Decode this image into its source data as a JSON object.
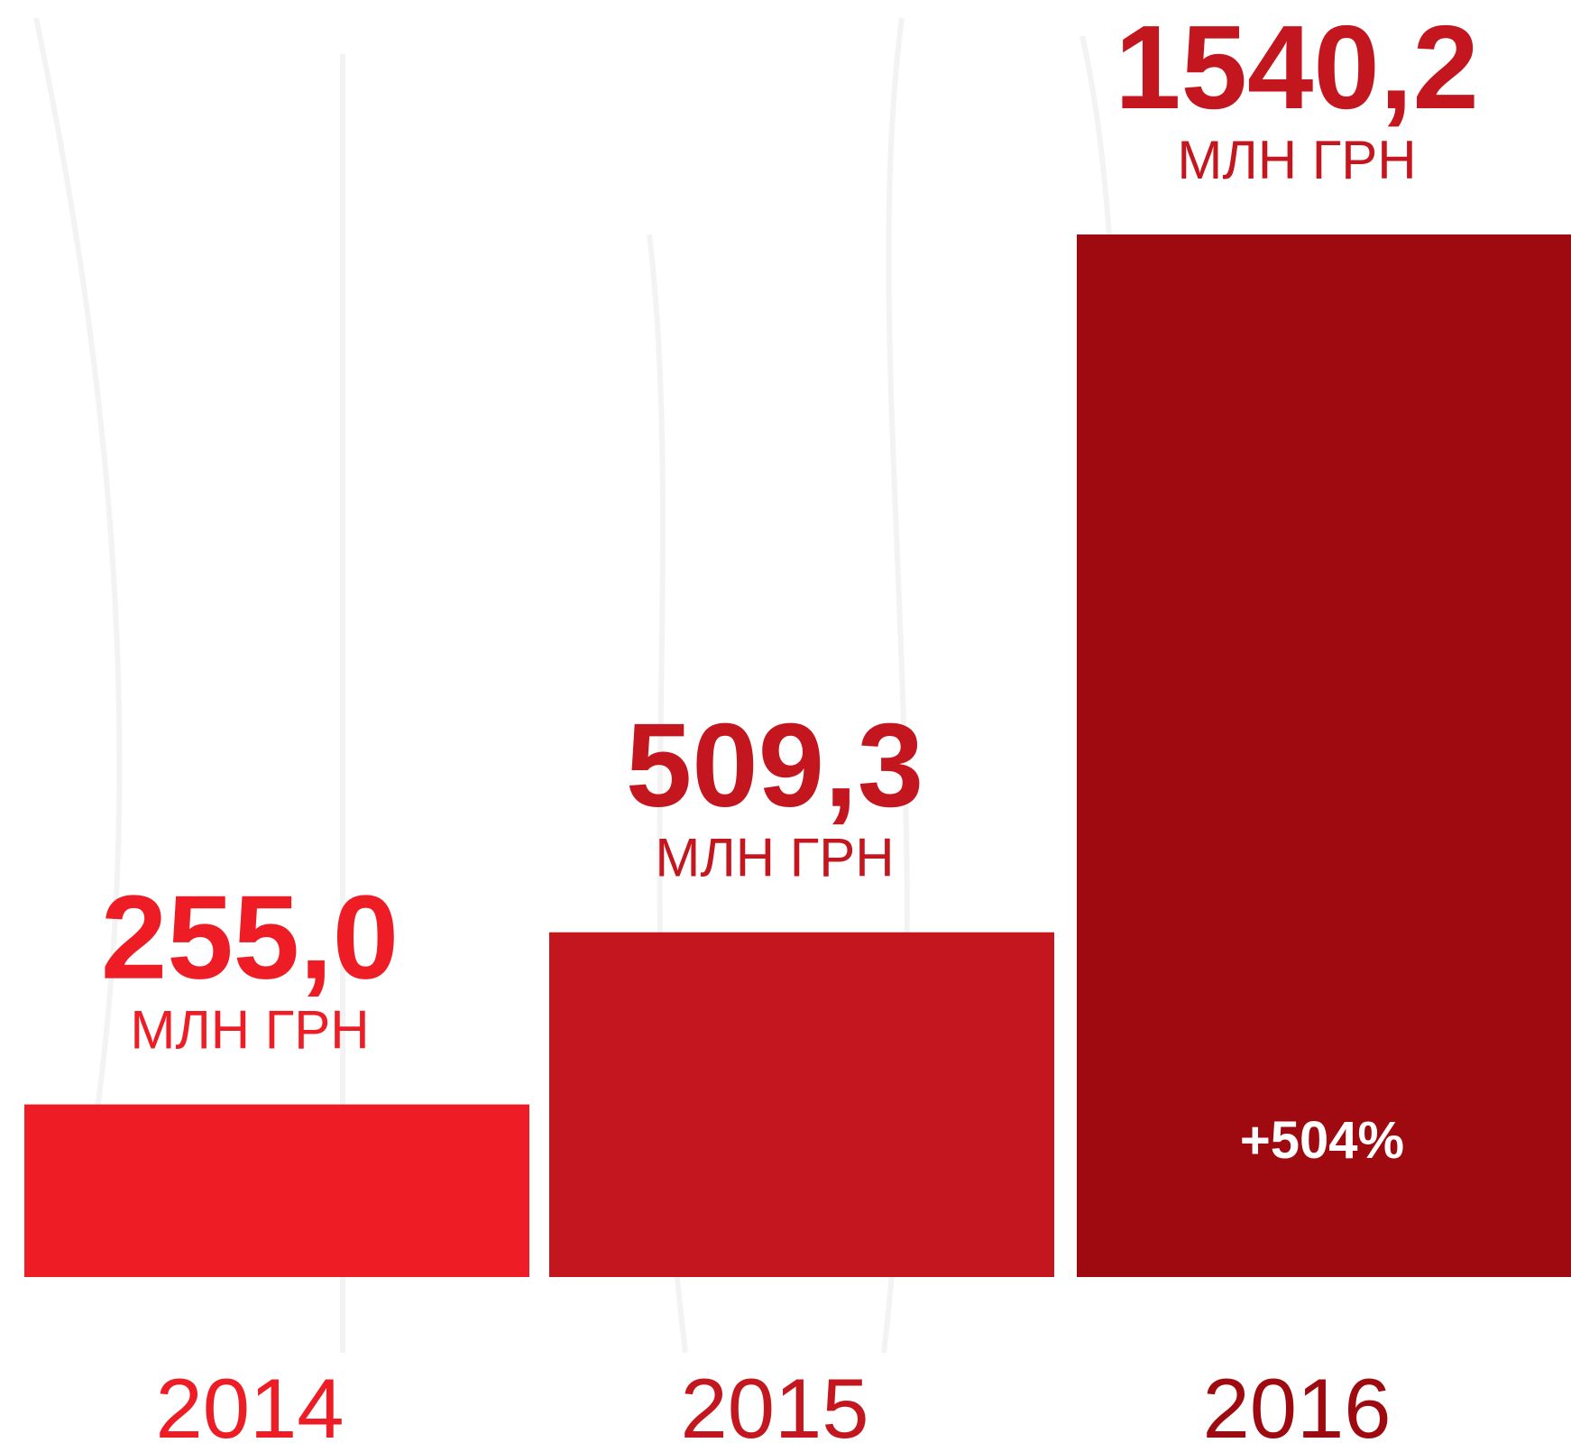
{
  "chart_data": {
    "type": "bar",
    "categories": [
      "2014",
      "2015",
      "2016"
    ],
    "values": [
      255.0,
      509.3,
      1540.2
    ],
    "value_labels": [
      "255,0",
      "509,3",
      "1540,2"
    ],
    "colors": [
      "#ee1c25",
      "#c4161e",
      "#9e0a10"
    ],
    "unit": "МЛН ГРН",
    "annotation": "+504%"
  }
}
